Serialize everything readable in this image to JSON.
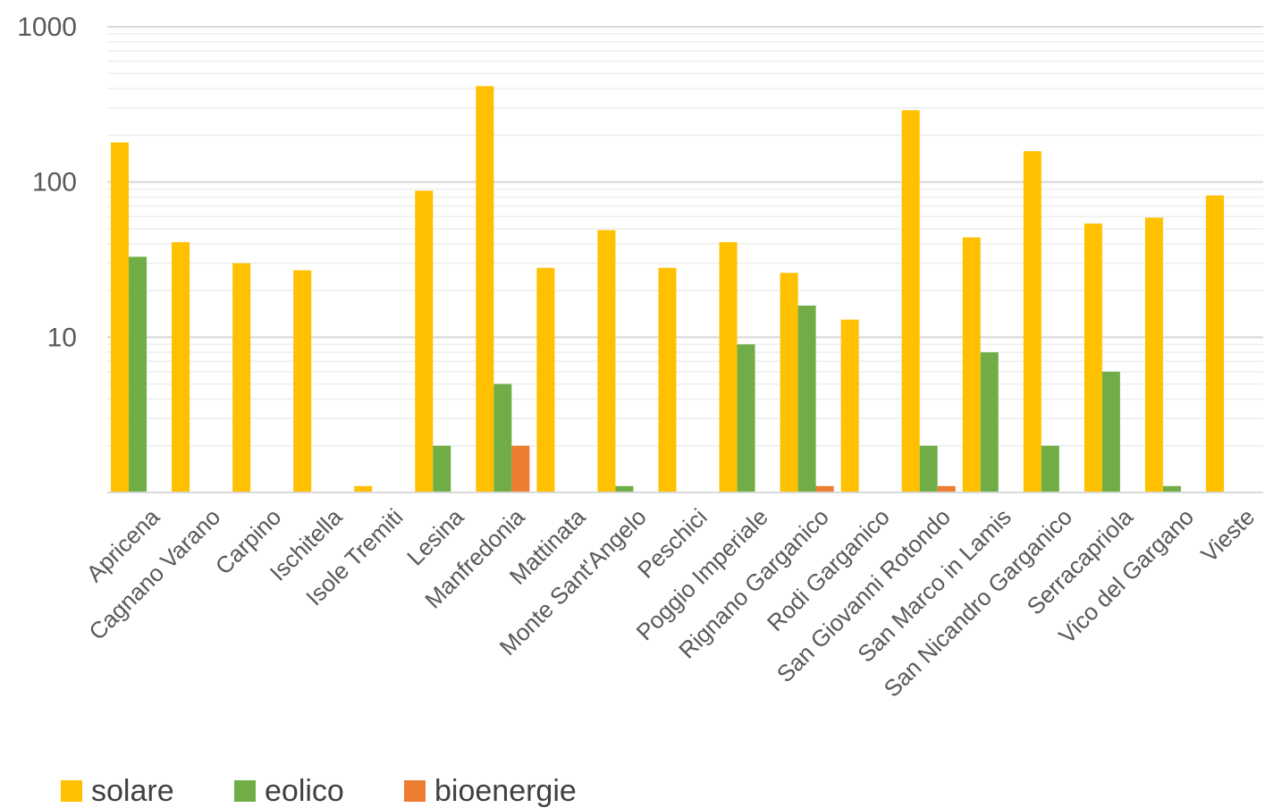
{
  "chart_data": {
    "type": "bar",
    "title": "",
    "xlabel": "",
    "ylabel": "",
    "yscale": "log",
    "ylim": [
      1,
      1000
    ],
    "yticks": [
      10,
      100,
      1000
    ],
    "grid": true,
    "legend_position": "bottom-left",
    "categories": [
      "Apricena",
      "Cagnano Varano",
      "Carpino",
      "Ischitella",
      "Isole Tremiti",
      "Lesina",
      "Manfredonia",
      "Mattinata",
      "Monte Sant'Angelo",
      "Peschici",
      "Poggio Imperiale",
      "Rignano Garganico",
      "Rodi Garganico",
      "San Giovanni Rotondo",
      "San Marco in Lamis",
      "San Nicandro Garganico",
      "Serracapriola",
      "Vico del Gargano",
      "Vieste"
    ],
    "series": [
      {
        "name": "solare",
        "color": "#FFC000",
        "values": [
          180,
          41,
          30,
          27,
          1.1,
          88,
          415,
          28,
          49,
          28,
          41,
          26,
          13,
          290,
          44,
          158,
          54,
          59,
          82
        ]
      },
      {
        "name": "eolico",
        "color": "#70AD47",
        "values": [
          33,
          null,
          null,
          null,
          null,
          2,
          5,
          null,
          1.1,
          null,
          9,
          16,
          null,
          2,
          8,
          2,
          6,
          1.1,
          null
        ]
      },
      {
        "name": "bioenergie",
        "color": "#ED7D31",
        "values": [
          null,
          null,
          null,
          null,
          null,
          null,
          2,
          null,
          null,
          null,
          null,
          1.1,
          null,
          1.1,
          null,
          null,
          null,
          null,
          null
        ]
      }
    ]
  }
}
